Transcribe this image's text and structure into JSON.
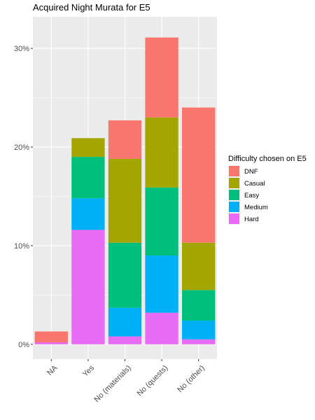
{
  "chart_data": {
    "type": "bar",
    "stacked": true,
    "title": "Acquired Night Murata for E5",
    "xlabel": "",
    "ylabel": "",
    "categories": [
      "NA",
      "Yes",
      "No (materials)",
      "No (quests)",
      "No (other)"
    ],
    "y_ticks": [
      0,
      10,
      20,
      30
    ],
    "y_tick_labels": [
      "0%",
      "10%",
      "20%",
      "30%"
    ],
    "y_unit": "%",
    "ylim": [
      -1.5,
      33.2
    ],
    "grid": true,
    "legend": {
      "title": "Difficulty chosen on E5",
      "position": "right"
    },
    "series": [
      {
        "name": "Hard",
        "color": "#E76BF3",
        "values": [
          0.2,
          11.6,
          0.8,
          3.2,
          0.5
        ]
      },
      {
        "name": "Medium",
        "color": "#00B0F6",
        "values": [
          0.0,
          3.2,
          2.9,
          5.8,
          1.9
        ]
      },
      {
        "name": "Easy",
        "color": "#00BF7D",
        "values": [
          0.0,
          4.2,
          6.6,
          6.9,
          3.1
        ]
      },
      {
        "name": "Casual",
        "color": "#A3A500",
        "values": [
          0.0,
          1.9,
          8.5,
          7.1,
          4.8
        ]
      },
      {
        "name": "DNF",
        "color": "#F8766D",
        "values": [
          1.1,
          0.0,
          3.9,
          8.1,
          13.7
        ]
      }
    ],
    "legend_order": [
      "DNF",
      "Casual",
      "Easy",
      "Medium",
      "Hard"
    ]
  }
}
